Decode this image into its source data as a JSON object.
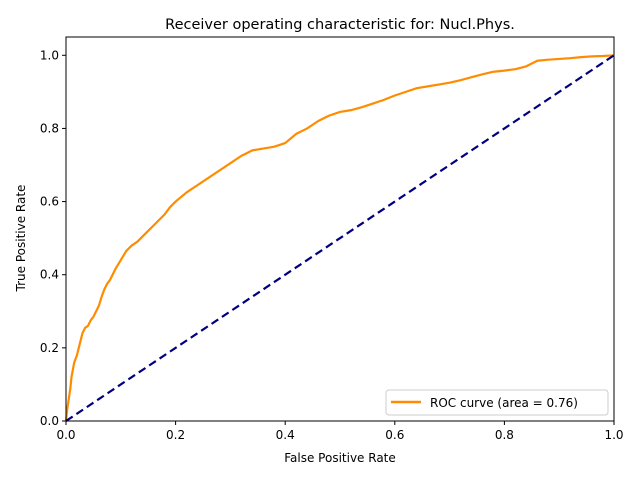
{
  "chart_data": {
    "type": "line",
    "title": "Receiver operating characteristic for: Nucl.Phys.",
    "xlabel": "False Positive Rate",
    "ylabel": "True Positive Rate",
    "xlim": [
      0.0,
      1.0
    ],
    "ylim": [
      0.0,
      1.05
    ],
    "x_ticks": [
      0.0,
      0.2,
      0.4,
      0.6,
      0.8,
      1.0
    ],
    "x_tick_labels": [
      "0.0",
      "0.2",
      "0.4",
      "0.6",
      "0.8",
      "1.0"
    ],
    "y_ticks": [
      0.0,
      0.2,
      0.4,
      0.6,
      0.8,
      1.0
    ],
    "y_tick_labels": [
      "0.0",
      "0.2",
      "0.4",
      "0.6",
      "0.8",
      "1.0"
    ],
    "grid": false,
    "legend_position": "lower-right",
    "series": [
      {
        "name": "ROC curve (area = 0.76)",
        "color": "#ff8c00",
        "style": "solid",
        "x": [
          0.0,
          0.002,
          0.005,
          0.008,
          0.01,
          0.015,
          0.02,
          0.025,
          0.03,
          0.035,
          0.04,
          0.045,
          0.05,
          0.055,
          0.06,
          0.065,
          0.07,
          0.075,
          0.08,
          0.085,
          0.09,
          0.1,
          0.11,
          0.12,
          0.13,
          0.14,
          0.15,
          0.16,
          0.17,
          0.18,
          0.19,
          0.2,
          0.22,
          0.24,
          0.26,
          0.28,
          0.3,
          0.32,
          0.34,
          0.36,
          0.38,
          0.4,
          0.42,
          0.44,
          0.46,
          0.48,
          0.5,
          0.52,
          0.54,
          0.56,
          0.58,
          0.6,
          0.62,
          0.64,
          0.66,
          0.68,
          0.7,
          0.72,
          0.74,
          0.76,
          0.78,
          0.8,
          0.82,
          0.84,
          0.86,
          0.88,
          0.9,
          0.92,
          0.94,
          0.96,
          0.98,
          1.0
        ],
        "y": [
          0.0,
          0.03,
          0.06,
          0.09,
          0.12,
          0.16,
          0.18,
          0.21,
          0.24,
          0.255,
          0.26,
          0.275,
          0.285,
          0.3,
          0.315,
          0.34,
          0.36,
          0.375,
          0.385,
          0.4,
          0.415,
          0.44,
          0.465,
          0.48,
          0.49,
          0.505,
          0.52,
          0.535,
          0.55,
          0.565,
          0.585,
          0.6,
          0.625,
          0.645,
          0.665,
          0.685,
          0.705,
          0.725,
          0.74,
          0.745,
          0.75,
          0.76,
          0.785,
          0.8,
          0.82,
          0.835,
          0.845,
          0.85,
          0.858,
          0.868,
          0.878,
          0.89,
          0.9,
          0.91,
          0.915,
          0.92,
          0.925,
          0.932,
          0.94,
          0.948,
          0.955,
          0.958,
          0.962,
          0.97,
          0.985,
          0.988,
          0.99,
          0.992,
          0.995,
          0.997,
          0.998,
          1.0
        ]
      },
      {
        "color": "#000080",
        "style": "dashed",
        "x": [
          0.0,
          1.0
        ],
        "y": [
          0.0,
          1.0
        ]
      }
    ]
  }
}
